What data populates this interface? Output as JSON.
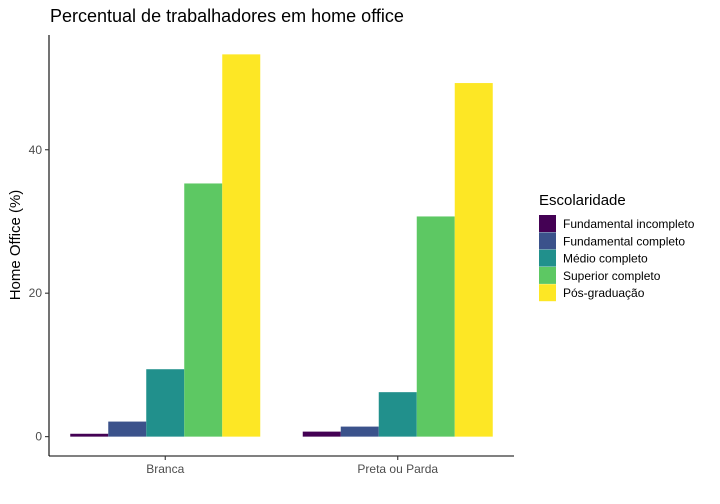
{
  "chart_data": {
    "type": "bar",
    "title": "Percentual de trabalhadores em home office",
    "xlabel": "",
    "ylabel": "Home Office (%)",
    "categories": [
      "Branca",
      "Preta ou Parda"
    ],
    "series": [
      {
        "name": "Fundamental incompleto",
        "color": "#440154",
        "values": [
          0.4,
          0.7
        ]
      },
      {
        "name": "Fundamental completo",
        "color": "#3B528B",
        "values": [
          2.1,
          1.4
        ]
      },
      {
        "name": "Médio completo",
        "color": "#21908C",
        "values": [
          9.4,
          6.2
        ]
      },
      {
        "name": "Superior completo",
        "color": "#5DC863",
        "values": [
          35.3,
          30.7
        ]
      },
      {
        "name": "Pós-graduação",
        "color": "#FDE725",
        "values": [
          53.3,
          49.3
        ]
      }
    ],
    "yticks": [
      0,
      20,
      40
    ],
    "ylim": [
      -2.7,
      56.0
    ],
    "grid": false,
    "legend": {
      "title": "Escolaridade",
      "position": "right"
    }
  }
}
